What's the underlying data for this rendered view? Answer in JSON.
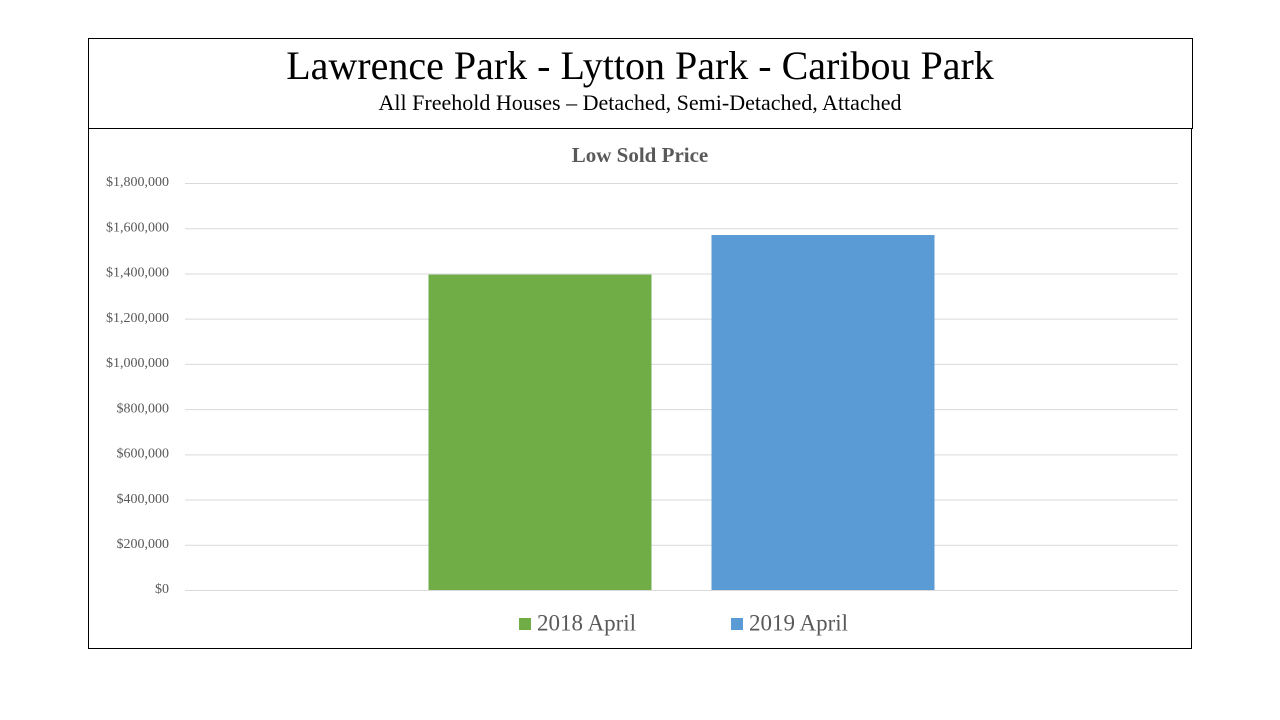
{
  "header": {
    "title": "Lawrence Park - Lytton Park - Caribou Park",
    "subtitle": "All Freehold Houses – Detached, Semi-Detached, Attached"
  },
  "chart_data": {
    "type": "bar",
    "title": "Low Sold Price",
    "categories": [
      null
    ],
    "series": [
      {
        "name": "2018 April",
        "color": "#70ad47",
        "values": [
          1395000
        ]
      },
      {
        "name": "2019 April",
        "color": "#5b9bd5",
        "values": [
          1570000
        ]
      }
    ],
    "ylim": [
      0,
      1800000
    ],
    "yticks": [
      {
        "value": 0,
        "label": "$0"
      },
      {
        "value": 200000,
        "label": "$200,000"
      },
      {
        "value": 400000,
        "label": "$400,000"
      },
      {
        "value": 600000,
        "label": "$600,000"
      },
      {
        "value": 800000,
        "label": "$800,000"
      },
      {
        "value": 1000000,
        "label": "$1,000,000"
      },
      {
        "value": 1200000,
        "label": "$1,200,000"
      },
      {
        "value": 1400000,
        "label": "$1,400,000"
      },
      {
        "value": 1600000,
        "label": "$1,600,000"
      },
      {
        "value": 1800000,
        "label": "$1,800,000"
      }
    ],
    "grid": true,
    "legend": "bottom"
  }
}
